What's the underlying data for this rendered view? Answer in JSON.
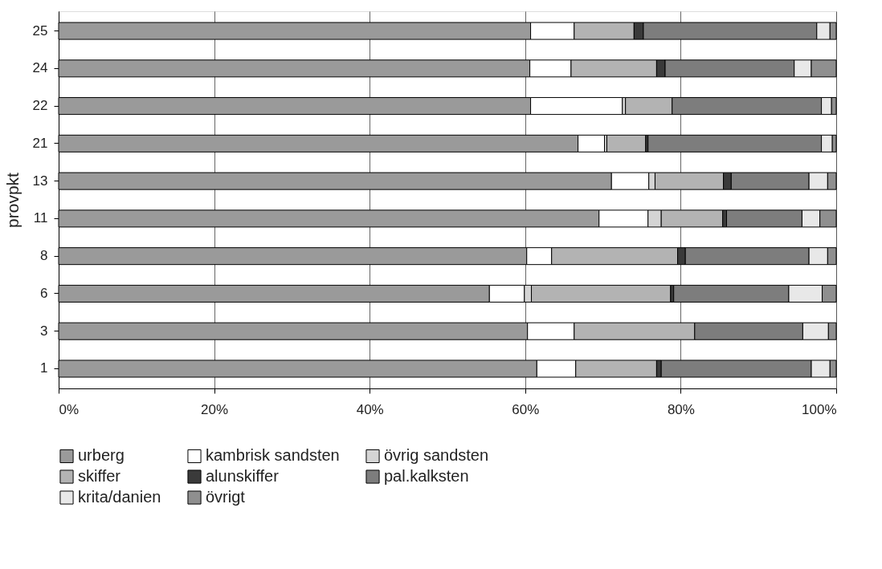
{
  "chart_data": {
    "type": "bar",
    "orientation": "horizontal",
    "stacked": true,
    "ylabel": "provpkt",
    "categories": [
      "25",
      "24",
      "22",
      "21",
      "13",
      "11",
      "8",
      "6",
      "3",
      "1"
    ],
    "series": [
      {
        "name": "urberg",
        "color": "#9a9a9a",
        "values": [
          60.7,
          60.6,
          60.7,
          66.8,
          71.1,
          69.5,
          60.2,
          55.4,
          60.3,
          61.5
        ]
      },
      {
        "name": "kambrisk sandsten",
        "color": "#ffffff",
        "values": [
          5.6,
          5.3,
          11.8,
          3.4,
          4.8,
          6.3,
          3.2,
          4.5,
          6.0,
          5.0
        ]
      },
      {
        "name": "övrig sandsten",
        "color": "#d4d4d4",
        "values": [
          0,
          0,
          0.4,
          0.3,
          0.8,
          1.7,
          0,
          0.9,
          0,
          0
        ]
      },
      {
        "name": "skiffer",
        "color": "#b3b3b3",
        "values": [
          7.7,
          11.0,
          6.0,
          5.0,
          8.8,
          7.9,
          16.2,
          17.9,
          15.5,
          10.4
        ]
      },
      {
        "name": "alunskiffer",
        "color": "#3a3a3a",
        "values": [
          1.2,
          1.1,
          0,
          0.3,
          1.0,
          0.5,
          1.0,
          0.4,
          0,
          0.6
        ]
      },
      {
        "name": "pal.kalksten",
        "color": "#7d7d7d",
        "values": [
          22.3,
          16.6,
          19.2,
          22.3,
          10.0,
          9.7,
          15.9,
          14.8,
          13.9,
          19.3
        ]
      },
      {
        "name": "krita/danien",
        "color": "#e8e8e8",
        "values": [
          1.7,
          2.2,
          1.3,
          1.4,
          2.4,
          2.3,
          2.4,
          4.3,
          3.3,
          2.4
        ]
      },
      {
        "name": "övrigt",
        "color": "#8f8f8f",
        "values": [
          0.8,
          3.2,
          0.6,
          0.5,
          1.1,
          2.1,
          1.1,
          1.8,
          1.0,
          0.8
        ]
      }
    ],
    "xlim": [
      0,
      100
    ],
    "xticks": [
      {
        "value": 0,
        "label": "0%"
      },
      {
        "value": 20,
        "label": "20%"
      },
      {
        "value": 40,
        "label": "40%"
      },
      {
        "value": 60,
        "label": "60%"
      },
      {
        "value": 80,
        "label": "80%"
      },
      {
        "value": 100,
        "label": "100%"
      }
    ],
    "grid": "x",
    "legend": "bottom"
  }
}
